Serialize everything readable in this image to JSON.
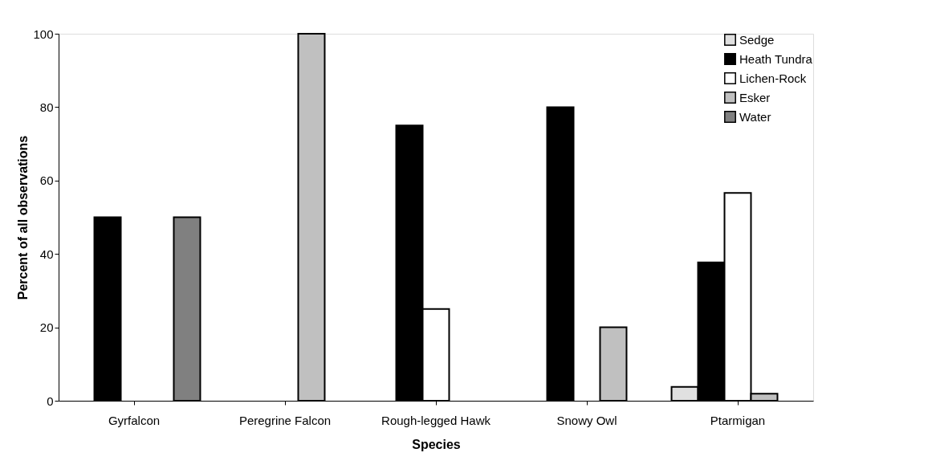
{
  "chart_data": {
    "type": "bar",
    "xlabel": "Species",
    "ylabel": "Percent of all observations",
    "categories": [
      "Gyrfalcon",
      "Peregrine Falcon",
      "Rough-legged Hawk",
      "Snowy Owl",
      "Ptarmigan"
    ],
    "series": [
      {
        "name": "Sedge",
        "color": "#e0e0e0",
        "values": [
          null,
          null,
          null,
          null,
          3.8
        ]
      },
      {
        "name": "Heath Tundra",
        "color": "#000000",
        "values": [
          50,
          null,
          75,
          80,
          37.7
        ]
      },
      {
        "name": "Lichen-Rock",
        "color": "#ffffff",
        "values": [
          null,
          null,
          25,
          null,
          56.6
        ]
      },
      {
        "name": "Esker",
        "color": "#c0c0c0",
        "values": [
          null,
          100,
          null,
          20,
          1.9
        ]
      },
      {
        "name": "Water",
        "color": "#808080",
        "values": [
          50,
          null,
          null,
          null,
          null
        ]
      }
    ],
    "ylim": [
      0,
      100
    ],
    "yticks": [
      0,
      20,
      40,
      60,
      80,
      100
    ],
    "grid": false,
    "legend": "top right"
  }
}
